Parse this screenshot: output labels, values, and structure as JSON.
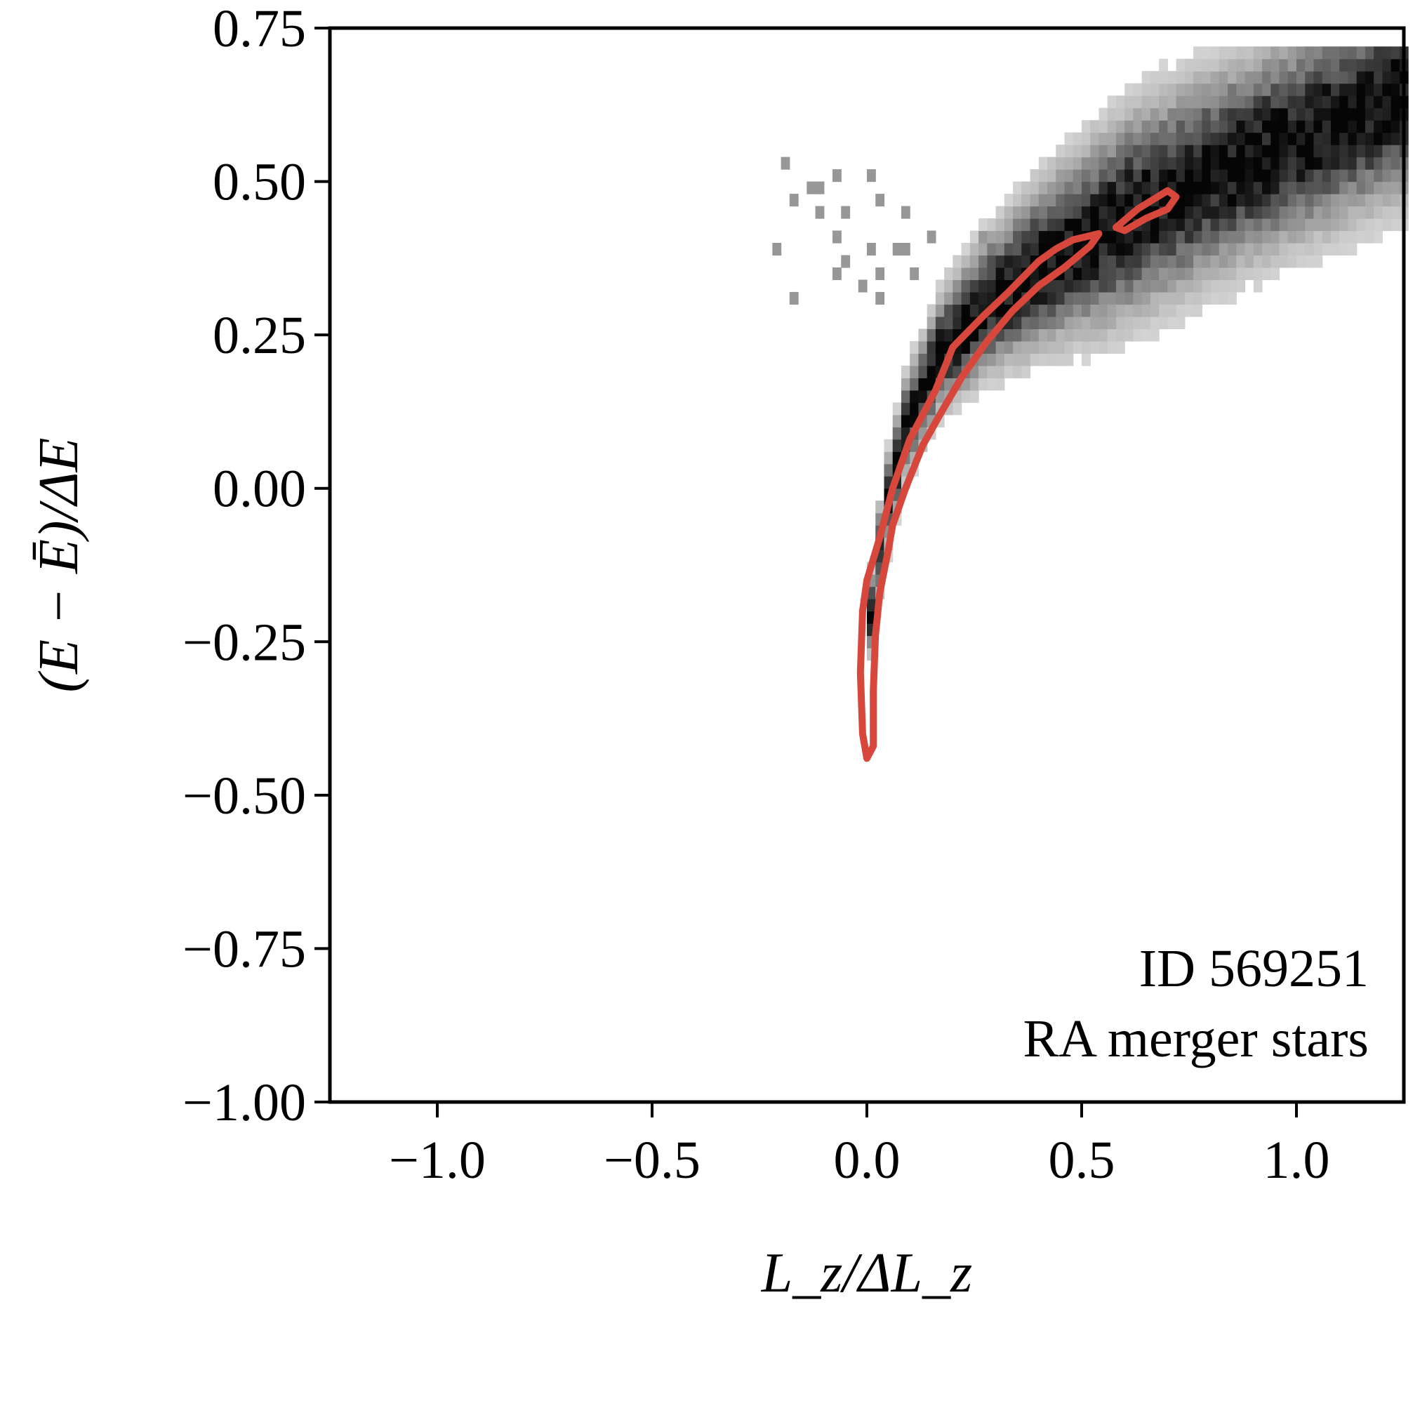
{
  "chart_data": {
    "type": "heatmap",
    "xlabel": "L_z/ΔL_z",
    "ylabel": "(E − Ē)/ΔE",
    "xlim": [
      -1.25,
      1.25
    ],
    "ylim": [
      -1.0,
      0.75
    ],
    "xticks": [
      -1.0,
      -0.5,
      0.0,
      0.5,
      1.0
    ],
    "xtick_labels": [
      "−1.0",
      "−0.5",
      "0.0",
      "0.5",
      "1.0"
    ],
    "yticks": [
      0.75,
      0.5,
      0.25,
      0.0,
      -0.25,
      -0.5,
      -0.75,
      -1.0
    ],
    "ytick_labels": [
      "0.75",
      "0.50",
      "0.25",
      "0.00",
      "−0.25",
      "−0.50",
      "−0.75",
      "−1.00"
    ],
    "annotations": [
      "ID 569251",
      "RA merger stars"
    ],
    "grid": false,
    "colormap": "greys",
    "density_ridge": [
      {
        "x": 0.0,
        "y": -0.48
      },
      {
        "x": 0.0,
        "y": -0.35
      },
      {
        "x": 0.01,
        "y": -0.2
      },
      {
        "x": 0.04,
        "y": -0.05
      },
      {
        "x": 0.09,
        "y": 0.1
      },
      {
        "x": 0.17,
        "y": 0.22
      },
      {
        "x": 0.28,
        "y": 0.3
      },
      {
        "x": 0.42,
        "y": 0.37
      },
      {
        "x": 0.6,
        "y": 0.44
      },
      {
        "x": 0.8,
        "y": 0.51
      },
      {
        "x": 1.0,
        "y": 0.57
      },
      {
        "x": 1.25,
        "y": 0.64
      }
    ],
    "contour_segments": [
      {
        "color": "#d7473c",
        "points": [
          [
            0.0,
            -0.44
          ],
          [
            -0.01,
            -0.4
          ],
          [
            -0.015,
            -0.3
          ],
          [
            -0.01,
            -0.2
          ],
          [
            0.0,
            -0.15
          ],
          [
            0.03,
            -0.08
          ],
          [
            0.06,
            0.0
          ],
          [
            0.1,
            0.08
          ],
          [
            0.16,
            0.16
          ],
          [
            0.2,
            0.23
          ],
          [
            0.27,
            0.28
          ],
          [
            0.33,
            0.32
          ],
          [
            0.4,
            0.37
          ],
          [
            0.44,
            0.39
          ],
          [
            0.48,
            0.405
          ],
          [
            0.54,
            0.415
          ],
          [
            0.52,
            0.395
          ],
          [
            0.46,
            0.36
          ],
          [
            0.4,
            0.33
          ],
          [
            0.34,
            0.29
          ],
          [
            0.28,
            0.24
          ],
          [
            0.22,
            0.18
          ],
          [
            0.17,
            0.12
          ],
          [
            0.13,
            0.07
          ],
          [
            0.09,
            0.0
          ],
          [
            0.06,
            -0.06
          ],
          [
            0.05,
            -0.1
          ],
          [
            0.03,
            -0.17
          ],
          [
            0.02,
            -0.24
          ],
          [
            0.015,
            -0.33
          ],
          [
            0.015,
            -0.42
          ],
          [
            0.0,
            -0.44
          ]
        ]
      },
      {
        "color": "#d7473c",
        "points": [
          [
            0.58,
            0.425
          ],
          [
            0.63,
            0.455
          ],
          [
            0.7,
            0.485
          ],
          [
            0.72,
            0.475
          ],
          [
            0.7,
            0.455
          ],
          [
            0.65,
            0.44
          ],
          [
            0.6,
            0.42
          ],
          [
            0.58,
            0.425
          ]
        ]
      }
    ]
  }
}
